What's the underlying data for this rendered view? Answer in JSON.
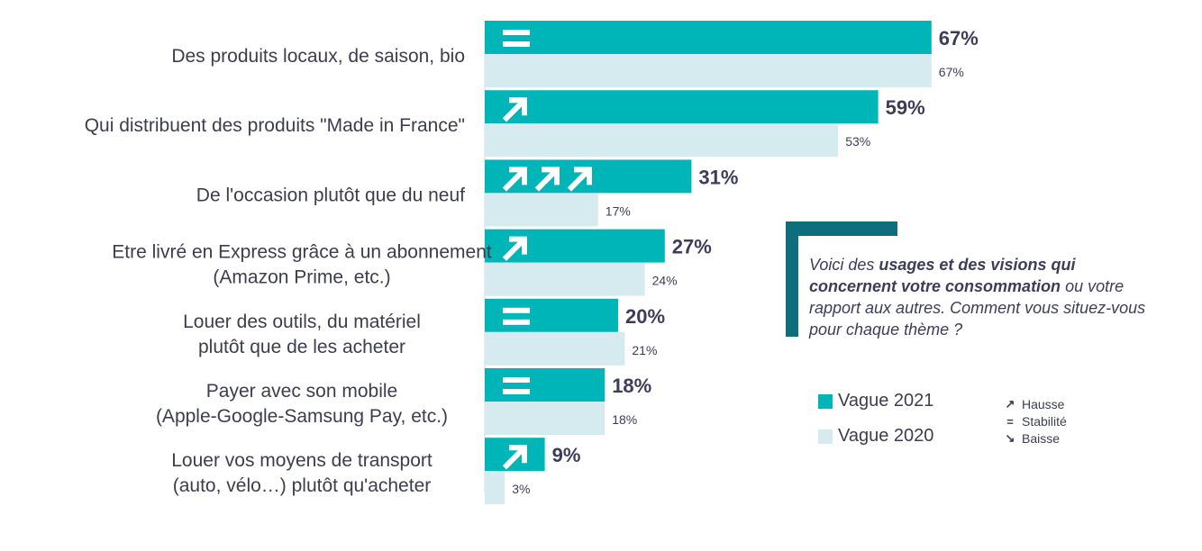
{
  "chart_data": {
    "type": "bar",
    "orientation": "horizontal",
    "categories": [
      [
        "Des produits locaux, de saison, bio"
      ],
      [
        "Qui distribuent des produits \"Made in France\""
      ],
      [
        "De l'occasion plutôt que du neuf"
      ],
      [
        "Etre livré en Express grâce à un abonnement",
        "(Amazon Prime,  etc.)"
      ],
      [
        "Louer des outils, du matériel",
        "plutôt que de les acheter"
      ],
      [
        "Payer avec son mobile",
        "(Apple-Google-Samsung Pay, etc.)"
      ],
      [
        "Louer vos moyens de transport",
        "(auto, vélo…) plutôt qu'acheter"
      ]
    ],
    "series": [
      {
        "name": "Vague 2021",
        "color": "#00b5b8",
        "values": [
          67,
          59,
          31,
          27,
          20,
          18,
          9
        ],
        "labels": [
          "67%",
          "59%",
          "31%",
          "27%",
          "20%",
          "18%",
          "9%"
        ]
      },
      {
        "name": "Vague 2020",
        "color": "#d6ebef",
        "values": [
          67,
          53,
          17,
          24,
          21,
          18,
          3
        ],
        "labels": [
          "67%",
          "53%",
          "17%",
          "24%",
          "21%",
          "18%",
          "3%"
        ]
      }
    ],
    "trends": [
      "stabilite",
      "hausse",
      "hausse3",
      "hausse",
      "stabilite",
      "stabilite",
      "hausse"
    ],
    "xlim": [
      0,
      67
    ],
    "grid": false,
    "legend": "right"
  },
  "callout": {
    "part1": "Voici des ",
    "bold": "usages et des visions qui concernent votre consommation",
    "part2": " ou votre rapport aux autres. Comment vous situez-vous pour chaque thème ?"
  },
  "legend": {
    "series2021": "Vague 2021",
    "series2020": "Vague 2020",
    "color2021": "#00b5b8",
    "color2020": "#d6ebef"
  },
  "trend_key": {
    "hausse": "Hausse",
    "stabilite": "Stabilité",
    "baisse": "Baisse"
  },
  "colors": {
    "accent_dark": "#0e6e7c",
    "text": "#3d3d4e"
  }
}
